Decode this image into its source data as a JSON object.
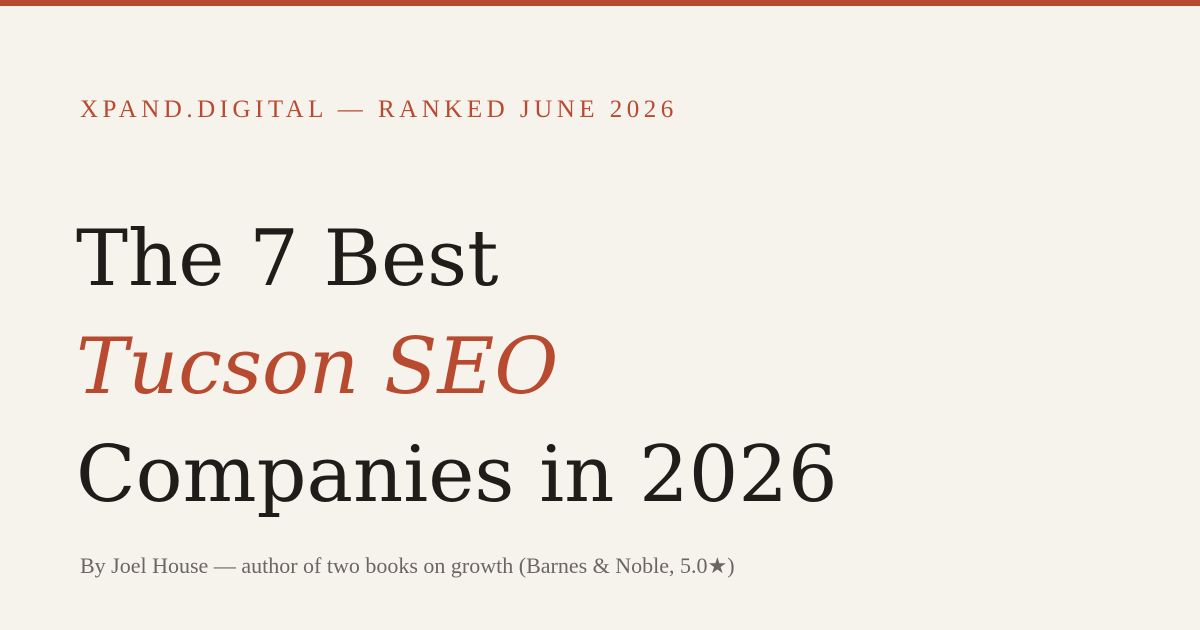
{
  "colors": {
    "accent": "#b84a30",
    "background": "#f6f2ec",
    "headline": "#1f1d1a",
    "byline": "#6b6661"
  },
  "eyebrow": "XPAND.DIGITAL — RANKED JUNE 2026",
  "headline": {
    "line1": "The 7 Best",
    "line2": "Tucson SEO",
    "line3": "Companies in 2026"
  },
  "byline": "By Joel House — author of two books on growth (Barnes & Noble, 5.0★)"
}
